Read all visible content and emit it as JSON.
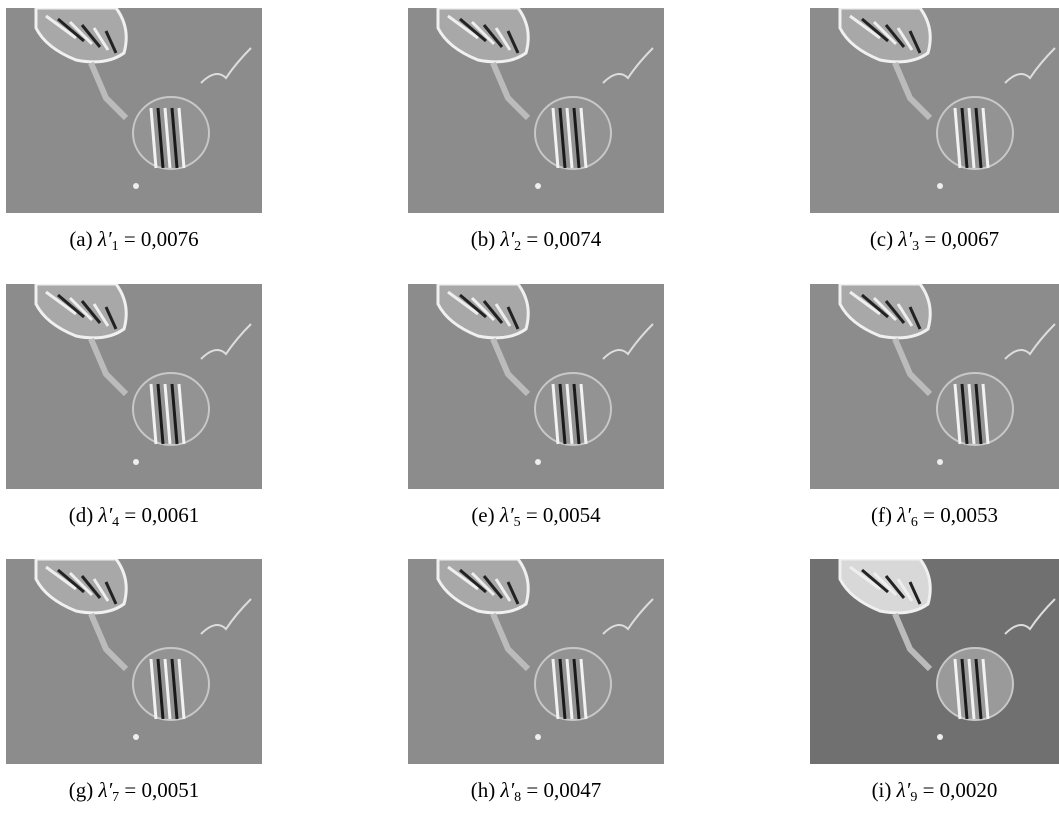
{
  "figure": {
    "panels": [
      {
        "label": "(a)",
        "symbol": "λ′",
        "index": "1",
        "rest": "= 0,0076"
      },
      {
        "label": "(b)",
        "symbol": "λ′",
        "index": "2",
        "rest": "= 0,0074"
      },
      {
        "label": "(c)",
        "symbol": "λ′",
        "index": "3",
        "rest": "= 0,0067"
      },
      {
        "label": "(d)",
        "symbol": "λ′",
        "index": "4",
        "rest": "= 0,0061"
      },
      {
        "label": "(e)",
        "symbol": "λ′",
        "index": "5",
        "rest": "= 0,0054"
      },
      {
        "label": "(f)",
        "symbol": "λ′",
        "index": "6",
        "rest": "= 0,0053"
      },
      {
        "label": "(g)",
        "symbol": "λ′",
        "index": "7",
        "rest": "= 0,0051"
      },
      {
        "label": "(h)",
        "symbol": "λ′",
        "index": "8",
        "rest": "= 0,0047"
      },
      {
        "label": "(i)",
        "symbol": "λ′",
        "index": "9",
        "rest": "= 0,0020"
      }
    ]
  }
}
